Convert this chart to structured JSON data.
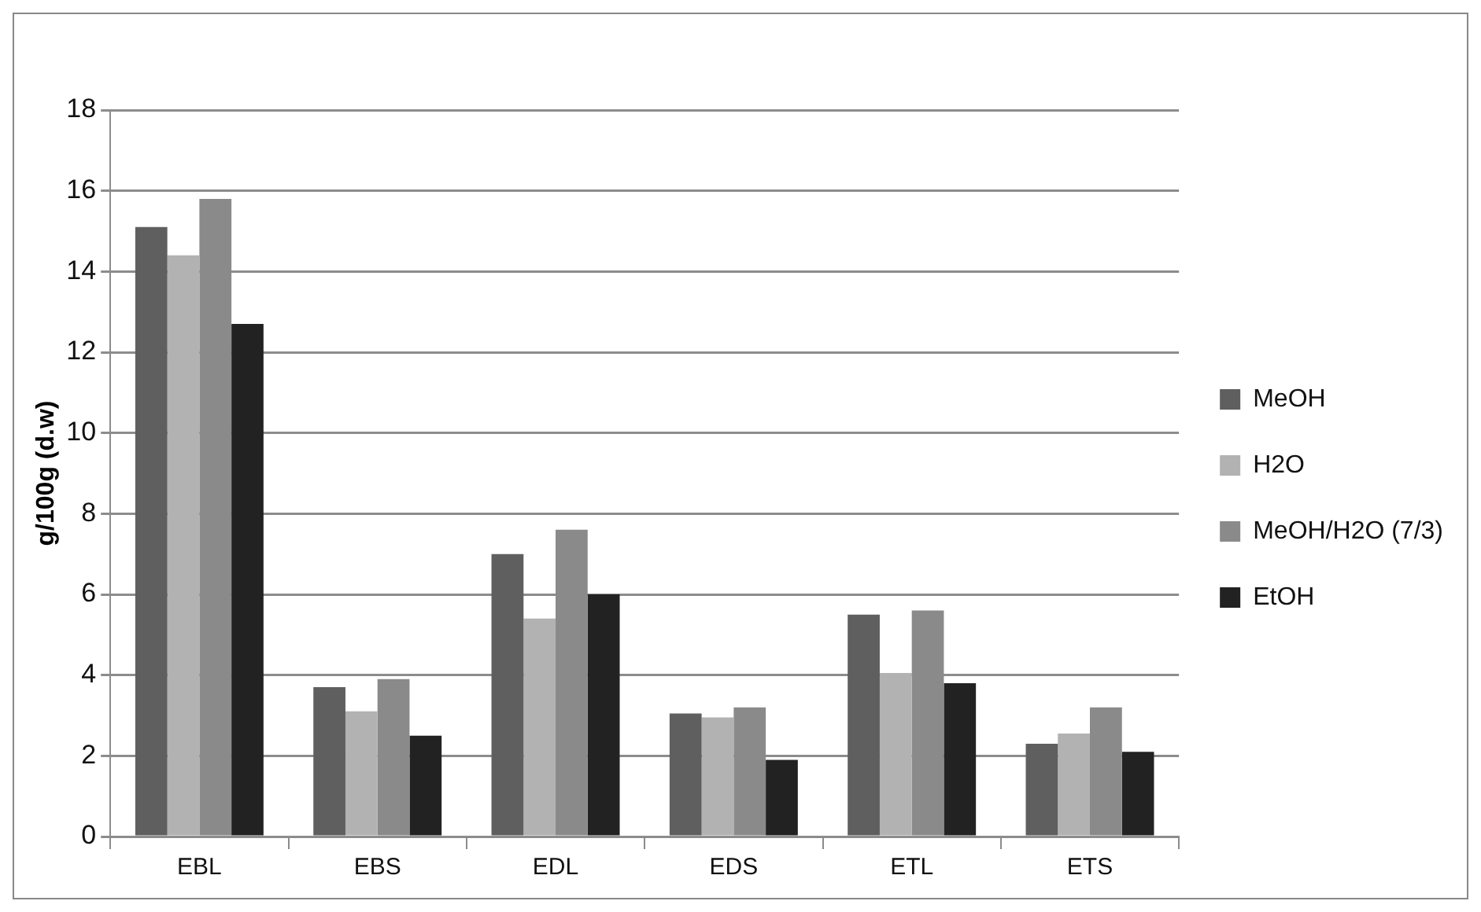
{
  "chart_data": {
    "type": "bar",
    "ylabel": "g/100g (d.w)",
    "categories": [
      "EBL",
      "EBS",
      "EDL",
      "EDS",
      "ETL",
      "ETS"
    ],
    "series": [
      {
        "name": "MeOH",
        "color": "#5f5f5f",
        "values": [
          15.1,
          3.7,
          7.0,
          3.05,
          5.5,
          2.3
        ]
      },
      {
        "name": "H2O",
        "color": "#b2b2b2",
        "values": [
          14.4,
          3.1,
          5.4,
          2.95,
          4.05,
          2.55
        ]
      },
      {
        "name": "MeOH/H2O (7/3)",
        "color": "#8a8a8a",
        "values": [
          15.8,
          3.9,
          7.6,
          3.2,
          5.6,
          3.2
        ]
      },
      {
        "name": "EtOH",
        "color": "#222222",
        "values": [
          12.7,
          2.5,
          6.0,
          1.9,
          3.8,
          2.1
        ]
      }
    ],
    "ylim": [
      0,
      18
    ],
    "yticks": [
      0,
      2,
      4,
      6,
      8,
      10,
      12,
      14,
      16,
      18
    ],
    "grid": "y",
    "legend": "right"
  }
}
